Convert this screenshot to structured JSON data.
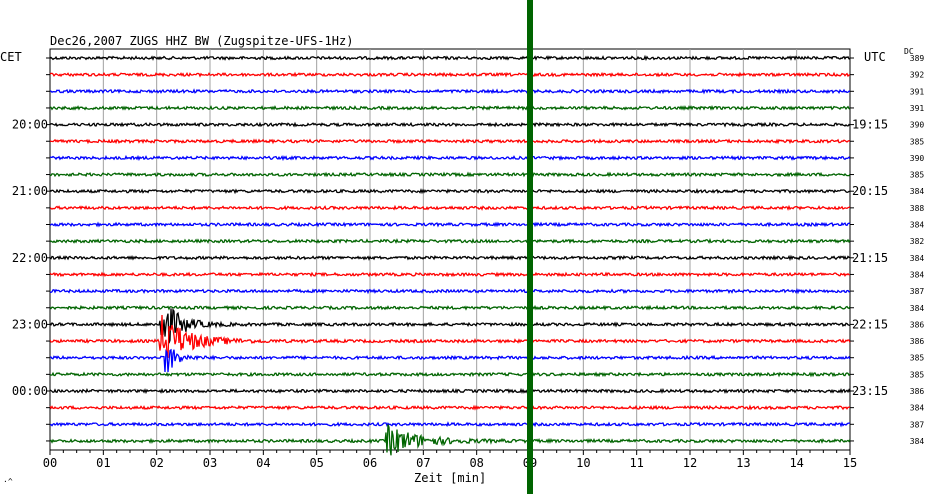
{
  "chart_data": {
    "type": "line",
    "title": "Dec26,2007   ZUGS HHZ BW (Zugspitze-UFS-1Hz)",
    "left_axis_label": "CET",
    "right_axis_label": "UTC",
    "dc_label": "DC",
    "xlabel": "Zeit [min]",
    "corner_mark": "·^",
    "xlim": [
      0,
      15
    ],
    "x_ticks": [
      "00",
      "01",
      "02",
      "03",
      "04",
      "05",
      "06",
      "07",
      "08",
      "09",
      "10",
      "11",
      "12",
      "13",
      "14",
      "15"
    ],
    "grid": true,
    "marker_minute": 9.0,
    "trace_colors": [
      "#000000",
      "#ff0000",
      "#0000ff",
      "#006400"
    ],
    "left_hour_labels": [
      {
        "row": 4,
        "text": "20:00"
      },
      {
        "row": 8,
        "text": "21:00"
      },
      {
        "row": 12,
        "text": "22:00"
      },
      {
        "row": 16,
        "text": "23:00"
      },
      {
        "row": 20,
        "text": "00:00"
      }
    ],
    "right_hour_labels": [
      {
        "row": 4,
        "text": "19:15"
      },
      {
        "row": 8,
        "text": "20:15"
      },
      {
        "row": 12,
        "text": "21:15"
      },
      {
        "row": 16,
        "text": "22:15"
      },
      {
        "row": 20,
        "text": "23:15"
      }
    ],
    "dc_values": [
      "389",
      "392",
      "391",
      "391",
      "390",
      "385",
      "390",
      "385",
      "384",
      "388",
      "384",
      "382",
      "384",
      "384",
      "387",
      "384",
      "386",
      "386",
      "385",
      "385",
      "386",
      "384",
      "387",
      "384"
    ],
    "events": [
      {
        "row": 16,
        "start_min": 2.05,
        "peak_amp": 1.8,
        "decay_min": 0.9
      },
      {
        "row": 17,
        "start_min": 2.05,
        "peak_amp": 1.6,
        "decay_min": 1.4
      },
      {
        "row": 18,
        "start_min": 2.15,
        "peak_amp": 1.2,
        "decay_min": 0.5
      },
      {
        "row": 23,
        "start_min": 6.3,
        "peak_amp": 0.9,
        "decay_min": 1.6
      }
    ]
  },
  "colors": {
    "marker": "#006400",
    "grid": "#a0a0a0"
  }
}
